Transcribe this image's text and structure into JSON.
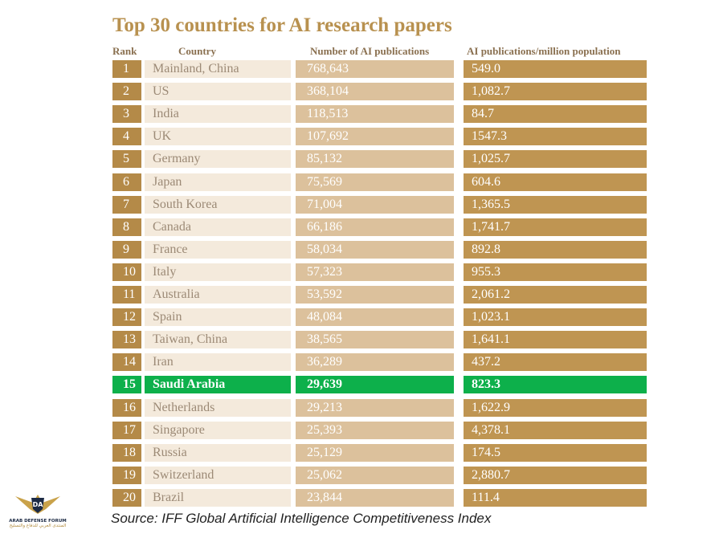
{
  "header": {
    "title": "Top 30 countries for AI research papers"
  },
  "table": {
    "columns": [
      "Rank",
      "Country",
      "Number of AI publications",
      "AI publications/million population"
    ],
    "rows": [
      [
        "1",
        "Mainland, China",
        "768,643",
        "549.0"
      ],
      [
        "2",
        "US",
        "368,104",
        "1,082.7"
      ],
      [
        "3",
        "India",
        "118,513",
        "84.7"
      ],
      [
        "4",
        "UK",
        "107,692",
        "1547.3"
      ],
      [
        "5",
        "Germany",
        "85,132",
        "1,025.7"
      ],
      [
        "6",
        "Japan",
        "75,569",
        "604.6"
      ],
      [
        "7",
        "South Korea",
        "71,004",
        "1,365.5"
      ],
      [
        "8",
        "Canada",
        "66,186",
        "1,741.7"
      ],
      [
        "9",
        "France",
        "58,034",
        "892.8"
      ],
      [
        "10",
        "Italy",
        "57,323",
        "955.3"
      ],
      [
        "11",
        "Australia",
        "53,592",
        "2,061.2"
      ],
      [
        "12",
        "Spain",
        "48,084",
        "1,023.1"
      ],
      [
        "13",
        "Taiwan, China",
        "38,565",
        "1,641.1"
      ],
      [
        "14",
        "Iran",
        "36,289",
        "437.2"
      ],
      [
        "15",
        "Saudi Arabia",
        "29,639",
        "823.3"
      ],
      [
        "16",
        "Netherlands",
        "29,213",
        "1,622.9"
      ],
      [
        "17",
        "Singapore",
        "25,393",
        "4,378.1"
      ],
      [
        "18",
        "Russia",
        "25,129",
        "174.5"
      ],
      [
        "19",
        "Switzerland",
        "25,062",
        "2,880.7"
      ],
      [
        "20",
        "Brazil",
        "23,844",
        "111.4"
      ]
    ]
  },
  "source": "Source: IFF Global Artificial Intelligence Competitiveness Index",
  "logo": {
    "mark": "DA",
    "name": "ARAB DEFENSE FORUM",
    "arabic": "المنتدى العربي للدفاع والتسليح"
  }
}
